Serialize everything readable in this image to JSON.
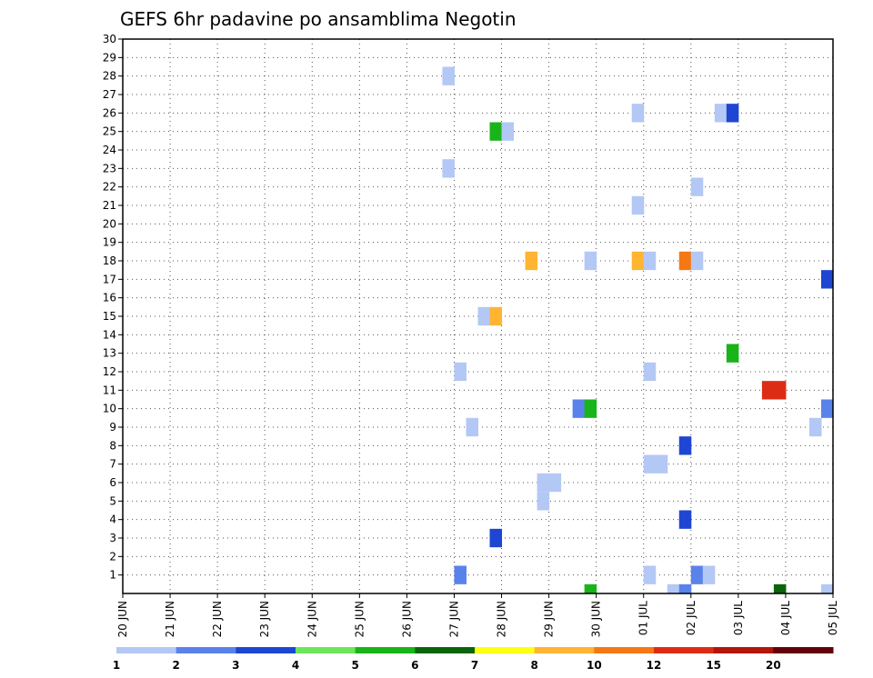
{
  "chart_data": {
    "type": "heatmap",
    "title": "GEFS 6hr padavine po ansamblima Negotin",
    "xlabel": "",
    "ylabel": "",
    "x_ticks": [
      "20 JUN",
      "21 JUN",
      "22 JUN",
      "23 JUN",
      "24 JUN",
      "25 JUN",
      "26 JUN",
      "27 JUN",
      "28 JUN",
      "29 JUN",
      "30 JUN",
      "01 JUL",
      "02 JUL",
      "03 JUL",
      "04 JUL",
      "05 JUL"
    ],
    "y_ticks": [
      1,
      2,
      3,
      4,
      5,
      6,
      7,
      8,
      9,
      10,
      11,
      12,
      13,
      14,
      15,
      16,
      17,
      18,
      19,
      20,
      21,
      22,
      23,
      24,
      25,
      26,
      27,
      28,
      29,
      30
    ],
    "xlim": [
      0,
      15
    ],
    "ylim": [
      0,
      30
    ],
    "grid": true,
    "colorbar": {
      "labels": [
        "1",
        "2",
        "3",
        "4",
        "5",
        "6",
        "7",
        "8",
        "10",
        "12",
        "15",
        "20"
      ],
      "colors": [
        "#b4c8f5",
        "#5a82eb",
        "#1e46d2",
        "#6ee65a",
        "#19b419",
        "#0a640a",
        "#ffff14",
        "#ffb432",
        "#f57814",
        "#dc2d14",
        "#b4140a",
        "#64000a"
      ]
    },
    "cells": [
      {
        "x": 6.75,
        "y": 28,
        "v": 1
      },
      {
        "x": 6.75,
        "y": 23,
        "v": 1
      },
      {
        "x": 7.0,
        "y": 12,
        "v": 1
      },
      {
        "x": 7.0,
        "y": 1,
        "v": 2
      },
      {
        "x": 7.25,
        "y": 9,
        "v": 1
      },
      {
        "x": 7.5,
        "y": 15,
        "v": 1
      },
      {
        "x": 7.75,
        "y": 15,
        "v": 8
      },
      {
        "x": 7.75,
        "y": 25,
        "v": 5
      },
      {
        "x": 8.0,
        "y": 25,
        "v": 1
      },
      {
        "x": 7.75,
        "y": 3,
        "v": 3
      },
      {
        "x": 8.5,
        "y": 18,
        "v": 8
      },
      {
        "x": 8.75,
        "y": 6,
        "v": 1
      },
      {
        "x": 9.0,
        "y": 6,
        "v": 1
      },
      {
        "x": 8.75,
        "y": 5,
        "v": 1
      },
      {
        "x": 9.5,
        "y": 10,
        "v": 2
      },
      {
        "x": 9.75,
        "y": 10,
        "v": 5
      },
      {
        "x": 9.75,
        "y": 18,
        "v": 1
      },
      {
        "x": 9.75,
        "y": 0,
        "v": 5
      },
      {
        "x": 10.75,
        "y": 26,
        "v": 1
      },
      {
        "x": 10.75,
        "y": 21,
        "v": 1
      },
      {
        "x": 10.75,
        "y": 18,
        "v": 8
      },
      {
        "x": 11.0,
        "y": 18,
        "v": 1
      },
      {
        "x": 11.0,
        "y": 12,
        "v": 1
      },
      {
        "x": 11.0,
        "y": 7,
        "v": 1
      },
      {
        "x": 11.25,
        "y": 7,
        "v": 1
      },
      {
        "x": 11.0,
        "y": 1,
        "v": 1
      },
      {
        "x": 11.5,
        "y": 0,
        "v": 1
      },
      {
        "x": 11.75,
        "y": 0,
        "v": 2
      },
      {
        "x": 11.75,
        "y": 18,
        "v": 10
      },
      {
        "x": 12.0,
        "y": 18,
        "v": 1
      },
      {
        "x": 11.75,
        "y": 8,
        "v": 3
      },
      {
        "x": 11.75,
        "y": 4,
        "v": 3
      },
      {
        "x": 12.0,
        "y": 22,
        "v": 1
      },
      {
        "x": 12.0,
        "y": 1,
        "v": 2
      },
      {
        "x": 12.25,
        "y": 1,
        "v": 1
      },
      {
        "x": 12.5,
        "y": 26,
        "v": 1
      },
      {
        "x": 12.75,
        "y": 26,
        "v": 3
      },
      {
        "x": 12.75,
        "y": 13,
        "v": 5
      },
      {
        "x": 13.5,
        "y": 11,
        "v": 12
      },
      {
        "x": 13.75,
        "y": 11,
        "v": 12
      },
      {
        "x": 13.75,
        "y": 0,
        "v": 6
      },
      {
        "x": 14.5,
        "y": 9,
        "v": 1
      },
      {
        "x": 14.75,
        "y": 17,
        "v": 3
      },
      {
        "x": 14.75,
        "y": 10,
        "v": 2
      },
      {
        "x": 14.75,
        "y": 0,
        "v": 1
      }
    ]
  }
}
